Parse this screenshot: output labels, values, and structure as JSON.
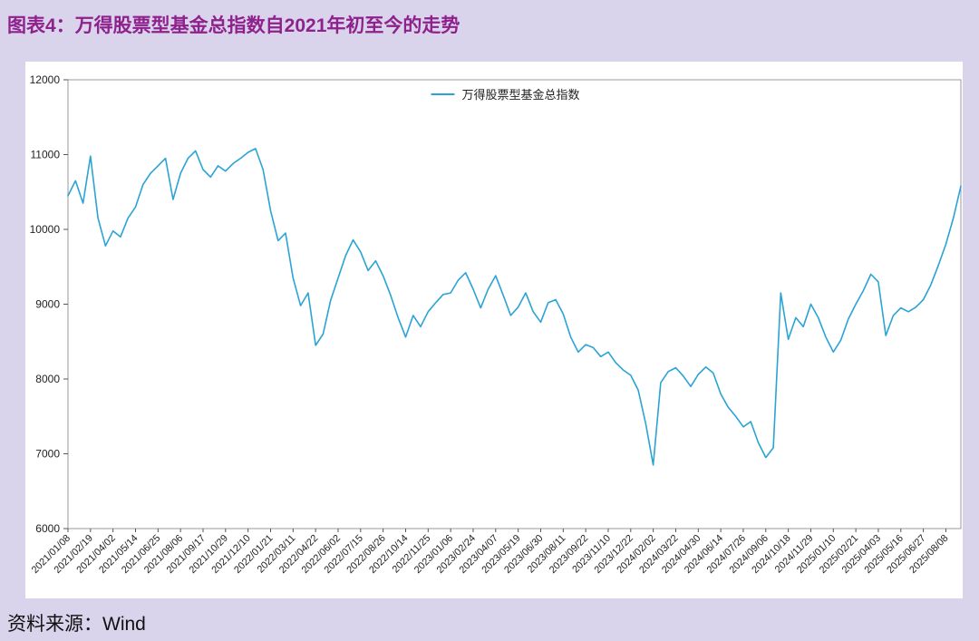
{
  "page": {
    "title": "图表4：万得股票型基金总指数自2021年初至今的走势",
    "source": "资料来源：Wind"
  },
  "colors": {
    "background": "#d9d4ec",
    "panel": "#ffffff",
    "title": "#8f218c",
    "line": "#2aa3d5",
    "axis_text": "#222222",
    "border": "#9a9a9a",
    "source_text": "#111111"
  },
  "chart_data": {
    "type": "line",
    "title": "",
    "legend": "万得股票型基金总指数",
    "legend_position": "top-center",
    "grid": false,
    "ylim": [
      6000,
      12000
    ],
    "y_ticks": [
      12000,
      11000,
      10000,
      9000,
      8000,
      7000,
      6000
    ],
    "x_tick_every": 3,
    "x_tick_labels": [
      "2021/01/08",
      "2021/02/19",
      "2021/04/02",
      "2021/05/14",
      "2021/06/25",
      "2021/08/06",
      "2021/09/17",
      "2021/10/29",
      "2021/12/10",
      "2022/01/21",
      "2022/03/11",
      "2022/04/22",
      "2022/06/02",
      "2022/07/15",
      "2022/08/26",
      "2022/10/14",
      "2022/11/25",
      "2023/01/06",
      "2023/02/24",
      "2023/04/07",
      "2023/05/19",
      "2023/06/30",
      "2023/08/11",
      "2023/09/22",
      "2023/11/10",
      "2023/12/22",
      "2024/02/02",
      "2024/03/22",
      "2024/04/30",
      "2024/06/14",
      "2024/07/26",
      "2024/09/06",
      "2024/10/18",
      "2024/11/29",
      "2025/01/10",
      "2025/02/21",
      "2025/04/03",
      "2025/05/16",
      "2025/06/27",
      "2025/08/08"
    ],
    "series": [
      {
        "name": "万得股票型基金总指数",
        "values": [
          10450,
          10650,
          10350,
          10980,
          10150,
          9780,
          9980,
          9900,
          10150,
          10300,
          10600,
          10750,
          10850,
          10950,
          10400,
          10750,
          10950,
          11050,
          10800,
          10700,
          10850,
          10780,
          10880,
          10950,
          11030,
          11080,
          10800,
          10250,
          9850,
          9950,
          9350,
          8980,
          9150,
          8450,
          8600,
          9050,
          9350,
          9650,
          9860,
          9700,
          9450,
          9580,
          9380,
          9120,
          8820,
          8560,
          8850,
          8700,
          8900,
          9020,
          9130,
          9150,
          9320,
          9420,
          9200,
          8950,
          9200,
          9380,
          9120,
          8850,
          8960,
          9150,
          8900,
          8760,
          9020,
          9060,
          8870,
          8560,
          8360,
          8460,
          8420,
          8300,
          8360,
          8220,
          8120,
          8050,
          7850,
          7400,
          6850,
          7950,
          8100,
          8150,
          8040,
          7900,
          8060,
          8160,
          8080,
          7800,
          7620,
          7500,
          7360,
          7430,
          7150,
          6950,
          7080,
          9150,
          8530,
          8820,
          8700,
          9000,
          8820,
          8560,
          8360,
          8520,
          8800,
          9000,
          9180,
          9400,
          9300,
          8580,
          8850,
          8950,
          8900,
          8960,
          9060,
          9260,
          9520,
          9800,
          10150,
          10580
        ]
      }
    ]
  }
}
